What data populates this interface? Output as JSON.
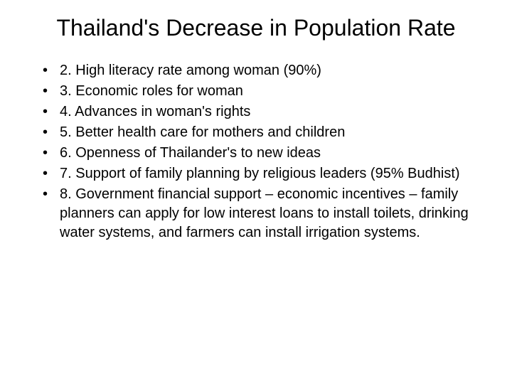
{
  "slide": {
    "title": "Thailand's Decrease in Population Rate",
    "bullets": [
      "2.  High literacy rate among woman (90%)",
      "3.  Economic roles for woman",
      "4. Advances in woman's rights",
      "5.  Better health care for mothers and children",
      "6.  Openness of Thailander's to new ideas",
      "7.  Support of family planning by religious leaders (95% Budhist)",
      "8.  Government financial support – economic incentives – family planners can apply for low interest loans to install toilets, drinking water systems, and farmers can install irrigation systems."
    ]
  },
  "styling": {
    "background_color": "#ffffff",
    "text_color": "#000000",
    "title_fontsize": 32,
    "body_fontsize": 20,
    "font_family": "Arial"
  }
}
